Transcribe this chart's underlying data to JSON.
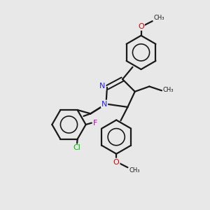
{
  "background_color": "#e8e8e8",
  "bond_color": "#1a1a1a",
  "N_color": "#2020ff",
  "Cl_color": "#00bb00",
  "F_color": "#cc00cc",
  "O_color": "#dd0000",
  "figsize": [
    3.0,
    3.0
  ],
  "dpi": 100,
  "xlim": [
    0,
    10
  ],
  "ylim": [
    0,
    10
  ]
}
